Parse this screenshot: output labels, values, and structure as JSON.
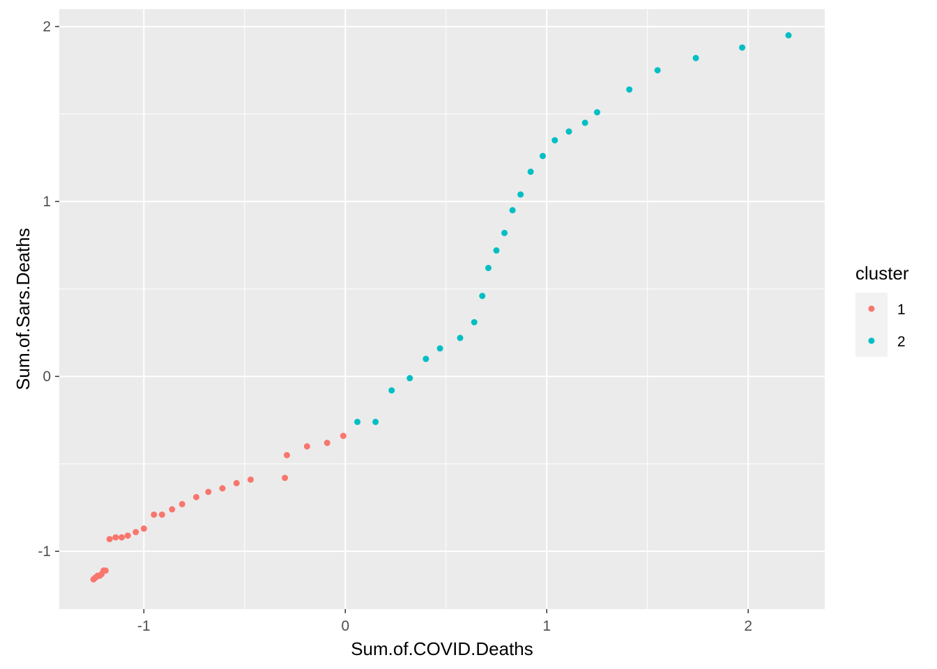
{
  "chart_data": {
    "type": "scatter",
    "title": "",
    "xlabel": "Sum.of.COVID.Deaths",
    "ylabel": "Sum.of.Sars.Deaths",
    "xlim": [
      -1.42,
      2.38
    ],
    "ylim": [
      -1.33,
      2.1
    ],
    "xticks": [
      -1,
      0,
      1,
      2
    ],
    "xtick_labels": [
      "-1",
      "0",
      "1",
      "2"
    ],
    "yticks": [
      -1,
      0,
      1,
      2
    ],
    "ytick_labels": [
      "-1",
      "0",
      "1",
      "2"
    ],
    "x_minor": [
      -0.5,
      0.5,
      1.5
    ],
    "y_minor": [
      -0.5,
      0.5,
      1.5
    ],
    "grid": true,
    "panel_background": "#ebebeb",
    "legend": {
      "title": "cluster",
      "position": "right",
      "entries": [
        {
          "label": "1",
          "color": "#f8766d"
        },
        {
          "label": "2",
          "color": "#00bfc4"
        }
      ]
    },
    "series": [
      {
        "name": "1",
        "color": "#f8766d",
        "points": [
          [
            -1.25,
            -1.16
          ],
          [
            -1.24,
            -1.15
          ],
          [
            -1.23,
            -1.14
          ],
          [
            -1.22,
            -1.14
          ],
          [
            -1.21,
            -1.13
          ],
          [
            -1.2,
            -1.11
          ],
          [
            -1.19,
            -1.11
          ],
          [
            -1.17,
            -0.93
          ],
          [
            -1.14,
            -0.92
          ],
          [
            -1.11,
            -0.92
          ],
          [
            -1.08,
            -0.91
          ],
          [
            -1.04,
            -0.89
          ],
          [
            -1.0,
            -0.87
          ],
          [
            -0.95,
            -0.79
          ],
          [
            -0.91,
            -0.79
          ],
          [
            -0.86,
            -0.76
          ],
          [
            -0.81,
            -0.73
          ],
          [
            -0.74,
            -0.69
          ],
          [
            -0.68,
            -0.66
          ],
          [
            -0.61,
            -0.64
          ],
          [
            -0.54,
            -0.61
          ],
          [
            -0.47,
            -0.59
          ],
          [
            -0.3,
            -0.58
          ],
          [
            -0.29,
            -0.45
          ],
          [
            -0.19,
            -0.4
          ],
          [
            -0.09,
            -0.38
          ],
          [
            -0.01,
            -0.34
          ]
        ]
      },
      {
        "name": "2",
        "color": "#00bfc4",
        "points": [
          [
            0.06,
            -0.26
          ],
          [
            0.15,
            -0.26
          ],
          [
            0.23,
            -0.08
          ],
          [
            0.32,
            -0.01
          ],
          [
            0.4,
            0.1
          ],
          [
            0.47,
            0.16
          ],
          [
            0.57,
            0.22
          ],
          [
            0.64,
            0.31
          ],
          [
            0.68,
            0.46
          ],
          [
            0.71,
            0.62
          ],
          [
            0.75,
            0.72
          ],
          [
            0.79,
            0.82
          ],
          [
            0.83,
            0.95
          ],
          [
            0.87,
            1.04
          ],
          [
            0.92,
            1.17
          ],
          [
            0.98,
            1.26
          ],
          [
            1.04,
            1.35
          ],
          [
            1.11,
            1.4
          ],
          [
            1.19,
            1.45
          ],
          [
            1.25,
            1.51
          ],
          [
            1.41,
            1.64
          ],
          [
            1.55,
            1.75
          ],
          [
            1.74,
            1.82
          ],
          [
            1.97,
            1.88
          ],
          [
            2.2,
            1.95
          ]
        ]
      }
    ]
  }
}
